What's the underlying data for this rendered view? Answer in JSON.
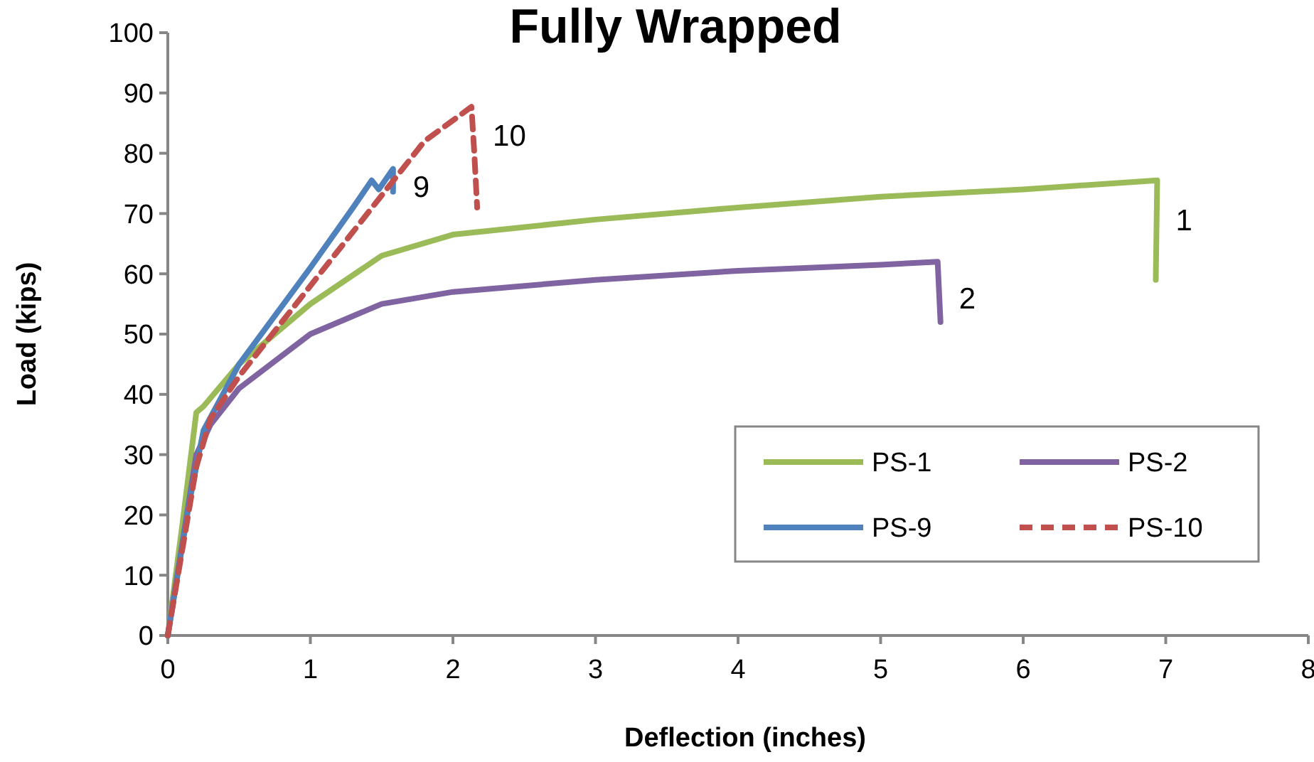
{
  "chart_data": {
    "type": "line",
    "title": "Fully Wrapped",
    "xlabel": "Deflection (inches)",
    "ylabel": "Load (kips)",
    "xlim": [
      0,
      8
    ],
    "xticks": [
      0,
      1,
      2,
      3,
      4,
      5,
      6,
      7,
      8
    ],
    "ylim": [
      0,
      100
    ],
    "yticks": [
      0,
      10,
      20,
      30,
      40,
      50,
      60,
      70,
      80,
      90,
      100
    ],
    "grid": false,
    "legend": "bottom right",
    "marker": "none",
    "series": [
      {
        "name": "PS-1",
        "color": "#9bbb59",
        "line_style": "solid",
        "x": [
          0,
          0.1,
          0.2,
          0.25,
          0.5,
          1,
          1.5,
          2,
          3,
          4,
          5,
          6,
          6.94,
          6.93
        ],
        "values": [
          0,
          18,
          37,
          38,
          45,
          55,
          63,
          66.5,
          69,
          71,
          72.8,
          74,
          75.5,
          59
        ]
      },
      {
        "name": "PS-2",
        "color": "#8064a2",
        "line_style": "solid",
        "x": [
          0,
          0.1,
          0.2,
          0.3,
          0.5,
          1,
          1.5,
          2,
          3,
          4,
          5,
          5.4,
          5.42
        ],
        "values": [
          0,
          15,
          30,
          35,
          41,
          50,
          55,
          57,
          59,
          60.5,
          61.5,
          62,
          52
        ]
      },
      {
        "name": "PS-9",
        "color": "#4f81bd",
        "line_style": "solid",
        "x": [
          0,
          0.15,
          0.25,
          0.5,
          1,
          1.3,
          1.43,
          1.48,
          1.58,
          1.58
        ],
        "values": [
          0,
          22,
          34,
          45,
          61,
          71,
          75.5,
          74,
          77.4,
          73.6
        ]
      },
      {
        "name": "PS-10",
        "color": "#c0504d",
        "line_style": "dashed",
        "x": [
          0,
          0.2,
          0.3,
          0.5,
          1,
          1.5,
          1.8,
          2.13,
          2.15,
          2.17
        ],
        "values": [
          0,
          28,
          36,
          43,
          58,
          73,
          82,
          87.7,
          80,
          71
        ]
      }
    ],
    "annotations": [
      {
        "text": "10",
        "x": 2.14,
        "y": 83
      },
      {
        "text": "9",
        "x": 1.58,
        "y": 74.5
      },
      {
        "text": "1",
        "x": 6.93,
        "y": 69
      },
      {
        "text": "2",
        "x": 5.41,
        "y": 56
      }
    ]
  }
}
